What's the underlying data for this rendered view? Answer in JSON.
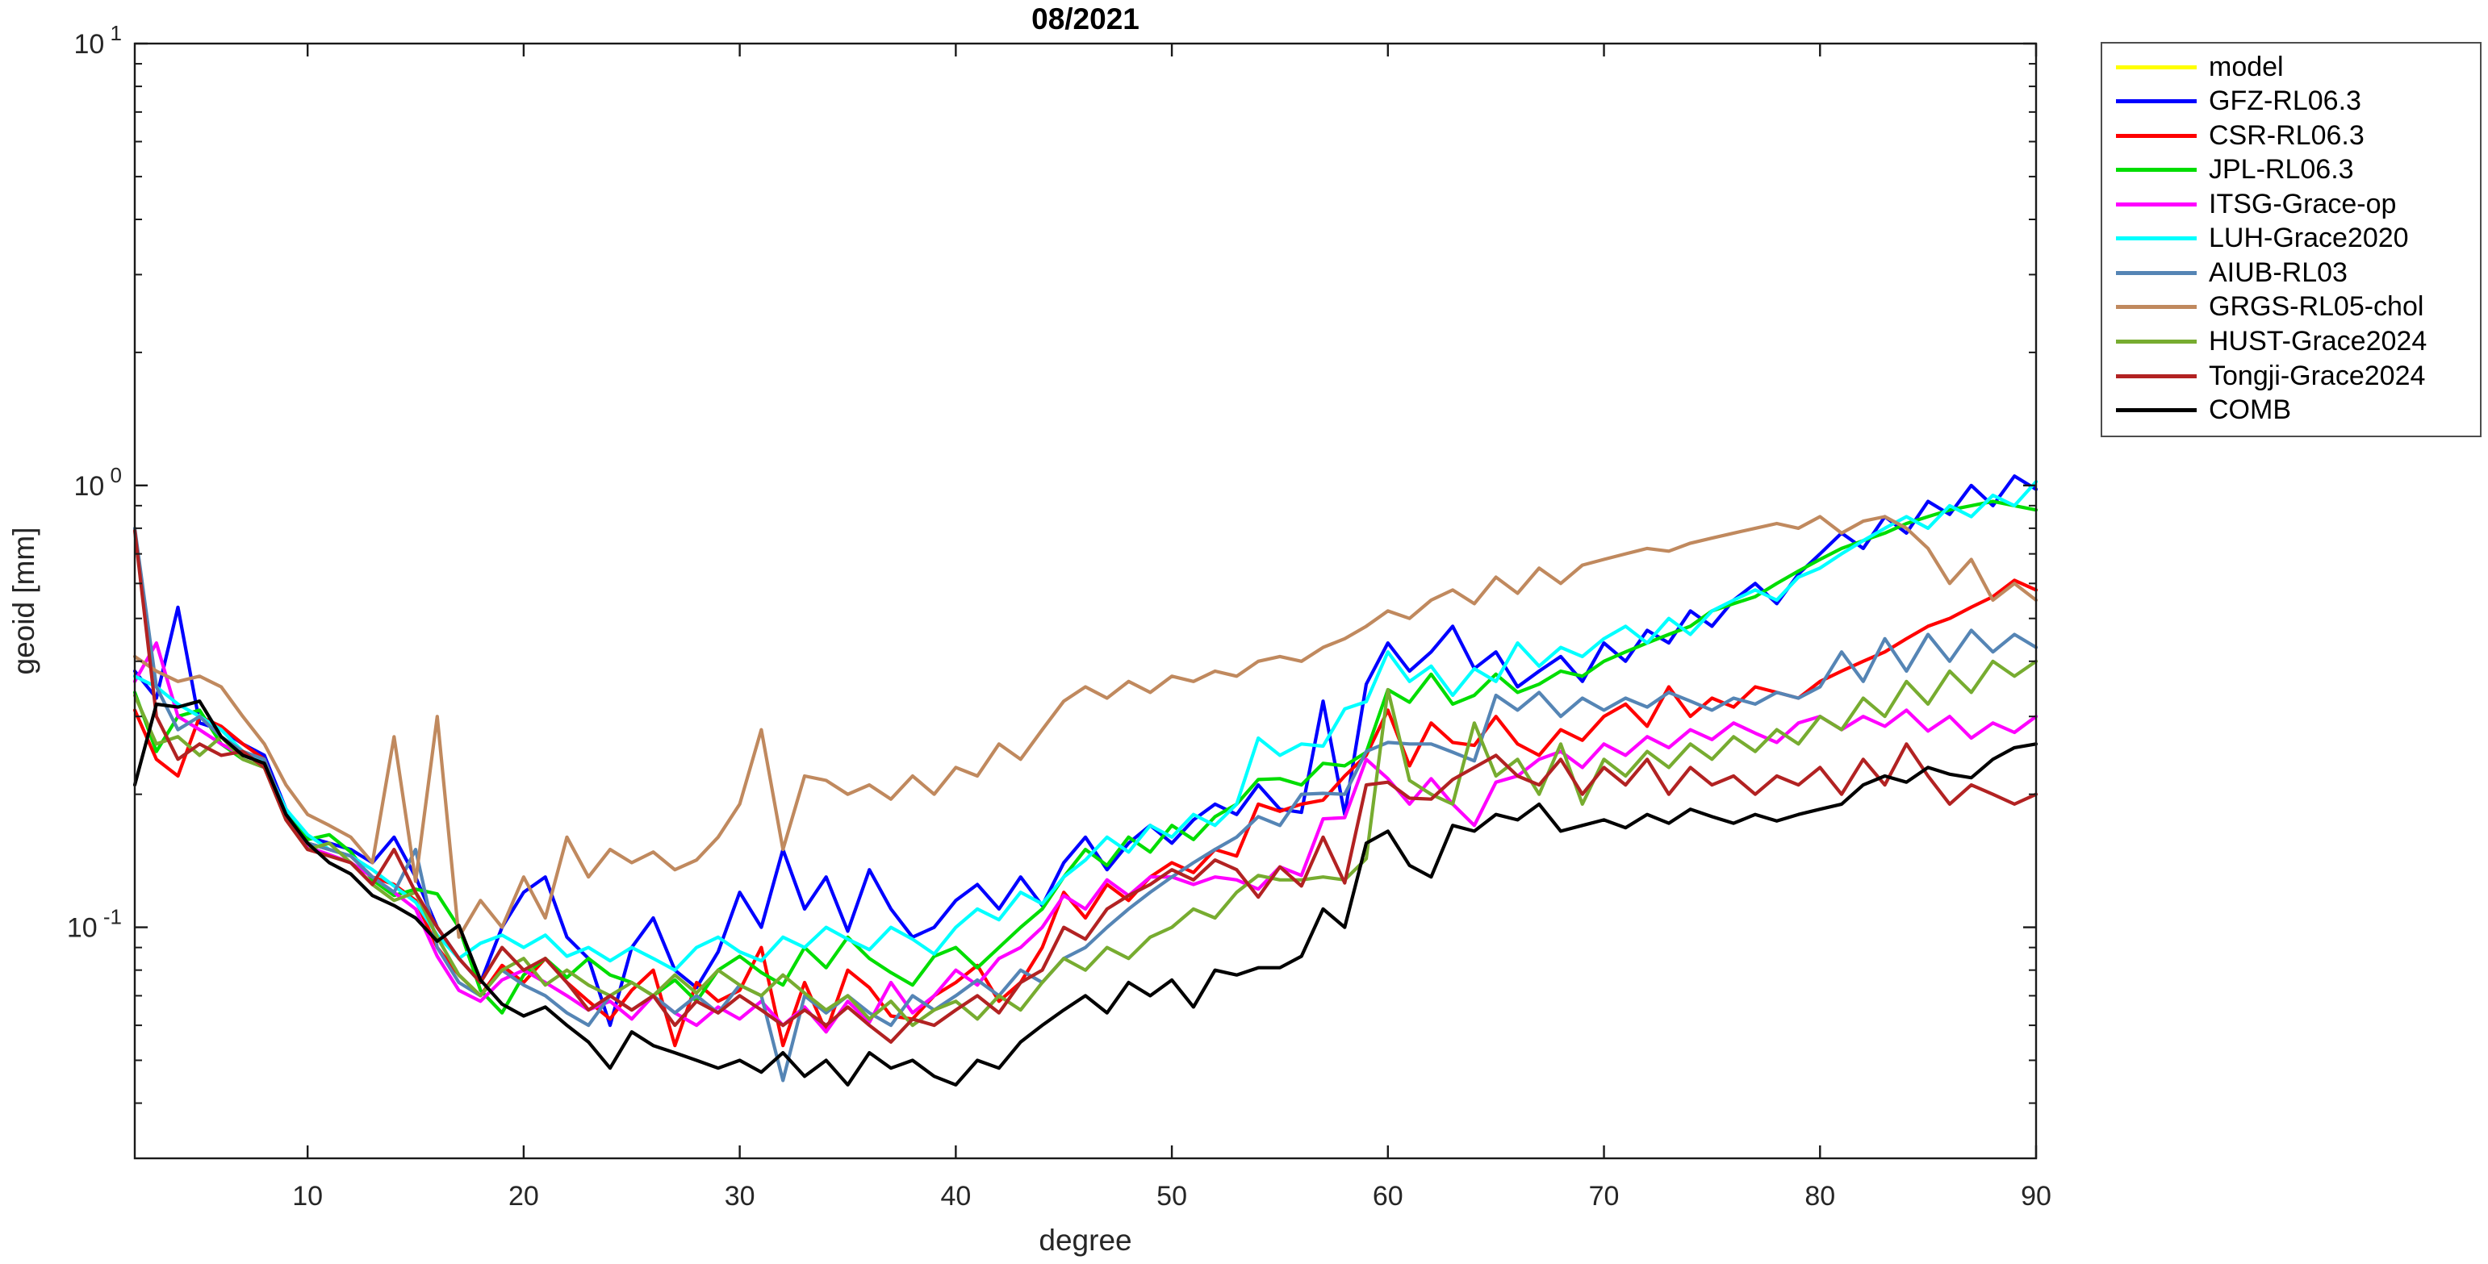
{
  "title": "08/2021",
  "axes": {
    "xlabel": "degree",
    "ylabel": "geoid [mm]"
  },
  "chart_data": {
    "type": "line",
    "title": "08/2021",
    "xlabel": "degree",
    "ylabel": "geoid [mm]",
    "x_axis": "spherical harmonic degree, linear",
    "y_axis": "log10 scale",
    "xlim": [
      2,
      90
    ],
    "ylim": [
      0.03,
      10
    ],
    "xticks": [
      10,
      20,
      30,
      40,
      50,
      60,
      70,
      80,
      90
    ],
    "yticks_major": [
      {
        "value": 10,
        "base": "10",
        "exp": "1"
      },
      {
        "value": 1,
        "base": "10",
        "exp": "0"
      },
      {
        "value": 0.1,
        "base": "10",
        "exp": "-1"
      }
    ],
    "yticks_minor": [
      0.04,
      0.05,
      0.06,
      0.07,
      0.08,
      0.09,
      0.2,
      0.3,
      0.4,
      0.5,
      0.6,
      0.7,
      0.8,
      0.9,
      2,
      3,
      4,
      5,
      6,
      7,
      8,
      9
    ],
    "grid": false,
    "legend_position": "outside-right",
    "x": [
      2,
      3,
      4,
      5,
      6,
      7,
      8,
      9,
      10,
      11,
      12,
      13,
      14,
      15,
      16,
      17,
      18,
      19,
      20,
      21,
      22,
      23,
      24,
      25,
      26,
      27,
      28,
      29,
      30,
      31,
      32,
      33,
      34,
      35,
      36,
      37,
      38,
      39,
      40,
      41,
      42,
      43,
      44,
      45,
      46,
      47,
      48,
      49,
      50,
      51,
      52,
      53,
      54,
      55,
      56,
      57,
      58,
      59,
      60,
      61,
      62,
      63,
      64,
      65,
      66,
      67,
      68,
      69,
      70,
      71,
      72,
      73,
      74,
      75,
      76,
      77,
      78,
      79,
      80,
      81,
      82,
      83,
      84,
      85,
      86,
      87,
      88,
      89,
      90
    ],
    "series": [
      {
        "name": "model",
        "color": "#FFFF00",
        "values": []
      },
      {
        "name": "GFZ-RL06.3",
        "color": "#0000FF",
        "values": [
          0.38,
          0.33,
          0.53,
          0.29,
          0.28,
          0.26,
          0.245,
          0.185,
          0.16,
          0.155,
          0.15,
          0.14,
          0.16,
          0.13,
          0.1,
          0.085,
          0.075,
          0.1,
          0.12,
          0.13,
          0.095,
          0.085,
          0.06,
          0.09,
          0.105,
          0.08,
          0.073,
          0.088,
          0.12,
          0.1,
          0.15,
          0.11,
          0.13,
          0.098,
          0.135,
          0.11,
          0.095,
          0.1,
          0.115,
          0.125,
          0.11,
          0.13,
          0.112,
          0.14,
          0.16,
          0.135,
          0.155,
          0.17,
          0.155,
          0.175,
          0.19,
          0.18,
          0.21,
          0.185,
          0.182,
          0.325,
          0.18,
          0.355,
          0.44,
          0.38,
          0.42,
          0.48,
          0.385,
          0.42,
          0.35,
          0.38,
          0.41,
          0.36,
          0.44,
          0.4,
          0.47,
          0.44,
          0.52,
          0.48,
          0.55,
          0.6,
          0.54,
          0.63,
          0.7,
          0.78,
          0.72,
          0.85,
          0.78,
          0.92,
          0.86,
          1.0,
          0.9,
          1.05,
          0.98
        ]
      },
      {
        "name": "CSR-RL06.3",
        "color": "#FF0000",
        "values": [
          0.31,
          0.24,
          0.22,
          0.3,
          0.285,
          0.26,
          0.24,
          0.18,
          0.155,
          0.15,
          0.145,
          0.13,
          0.125,
          0.115,
          0.09,
          0.078,
          0.07,
          0.082,
          0.075,
          0.085,
          0.075,
          0.068,
          0.062,
          0.072,
          0.08,
          0.054,
          0.075,
          0.068,
          0.072,
          0.09,
          0.054,
          0.075,
          0.058,
          0.08,
          0.073,
          0.063,
          0.062,
          0.07,
          0.075,
          0.082,
          0.068,
          0.075,
          0.09,
          0.12,
          0.105,
          0.125,
          0.115,
          0.13,
          0.14,
          0.133,
          0.15,
          0.145,
          0.19,
          0.183,
          0.19,
          0.194,
          0.22,
          0.245,
          0.31,
          0.232,
          0.29,
          0.262,
          0.258,
          0.3,
          0.26,
          0.245,
          0.28,
          0.265,
          0.3,
          0.32,
          0.285,
          0.35,
          0.3,
          0.33,
          0.315,
          0.35,
          0.34,
          0.33,
          0.36,
          0.38,
          0.4,
          0.42,
          0.45,
          0.48,
          0.5,
          0.53,
          0.56,
          0.61,
          0.58
        ]
      },
      {
        "name": "JPL-RL06.3",
        "color": "#00DD00",
        "values": [
          0.34,
          0.25,
          0.3,
          0.31,
          0.26,
          0.24,
          0.23,
          0.18,
          0.158,
          0.162,
          0.148,
          0.128,
          0.118,
          0.122,
          0.119,
          0.1,
          0.072,
          0.064,
          0.078,
          0.085,
          0.077,
          0.085,
          0.078,
          0.075,
          0.07,
          0.076,
          0.068,
          0.08,
          0.086,
          0.079,
          0.074,
          0.09,
          0.081,
          0.095,
          0.085,
          0.079,
          0.074,
          0.086,
          0.09,
          0.081,
          0.09,
          0.1,
          0.11,
          0.13,
          0.15,
          0.138,
          0.16,
          0.148,
          0.17,
          0.158,
          0.178,
          0.19,
          0.216,
          0.217,
          0.21,
          0.235,
          0.232,
          0.249,
          0.345,
          0.323,
          0.374,
          0.32,
          0.335,
          0.374,
          0.34,
          0.355,
          0.38,
          0.37,
          0.4,
          0.42,
          0.44,
          0.46,
          0.48,
          0.52,
          0.54,
          0.56,
          0.6,
          0.64,
          0.68,
          0.72,
          0.75,
          0.78,
          0.82,
          0.85,
          0.88,
          0.9,
          0.92,
          0.9,
          0.88
        ]
      },
      {
        "name": "ITSG-Grace-op",
        "color": "#FF00FF",
        "values": [
          0.36,
          0.44,
          0.3,
          0.28,
          0.26,
          0.245,
          0.235,
          0.18,
          0.152,
          0.146,
          0.14,
          0.13,
          0.12,
          0.11,
          0.086,
          0.072,
          0.068,
          0.076,
          0.08,
          0.075,
          0.07,
          0.065,
          0.068,
          0.062,
          0.07,
          0.064,
          0.06,
          0.066,
          0.062,
          0.068,
          0.06,
          0.066,
          0.058,
          0.068,
          0.061,
          0.075,
          0.064,
          0.07,
          0.08,
          0.074,
          0.085,
          0.09,
          0.1,
          0.118,
          0.11,
          0.128,
          0.118,
          0.13,
          0.13,
          0.125,
          0.13,
          0.128,
          0.122,
          0.137,
          0.131,
          0.176,
          0.177,
          0.24,
          0.217,
          0.19,
          0.217,
          0.19,
          0.17,
          0.213,
          0.22,
          0.24,
          0.25,
          0.23,
          0.26,
          0.245,
          0.27,
          0.255,
          0.28,
          0.266,
          0.29,
          0.275,
          0.262,
          0.29,
          0.3,
          0.28,
          0.3,
          0.285,
          0.31,
          0.278,
          0.3,
          0.268,
          0.29,
          0.276,
          0.3
        ]
      },
      {
        "name": "LUH-Grace2020",
        "color": "#00FFFF",
        "values": [
          0.37,
          0.35,
          0.32,
          0.3,
          0.28,
          0.25,
          0.235,
          0.185,
          0.162,
          0.15,
          0.145,
          0.135,
          0.124,
          0.114,
          0.096,
          0.085,
          0.092,
          0.096,
          0.09,
          0.096,
          0.086,
          0.09,
          0.084,
          0.09,
          0.085,
          0.08,
          0.09,
          0.095,
          0.088,
          0.084,
          0.095,
          0.09,
          0.1,
          0.094,
          0.089,
          0.1,
          0.094,
          0.087,
          0.1,
          0.11,
          0.104,
          0.12,
          0.113,
          0.13,
          0.142,
          0.16,
          0.148,
          0.17,
          0.16,
          0.18,
          0.17,
          0.19,
          0.268,
          0.245,
          0.26,
          0.257,
          0.312,
          0.324,
          0.42,
          0.36,
          0.39,
          0.335,
          0.385,
          0.36,
          0.44,
          0.39,
          0.43,
          0.41,
          0.45,
          0.48,
          0.44,
          0.5,
          0.46,
          0.52,
          0.55,
          0.58,
          0.55,
          0.62,
          0.65,
          0.7,
          0.75,
          0.8,
          0.85,
          0.8,
          0.9,
          0.85,
          0.95,
          0.9,
          1.02
        ]
      },
      {
        "name": "AIUB-RL03",
        "color": "#5585B5",
        "values": [
          0.8,
          0.35,
          0.28,
          0.3,
          0.27,
          0.25,
          0.24,
          0.18,
          0.155,
          0.15,
          0.145,
          0.13,
          0.12,
          0.15,
          0.09,
          0.075,
          0.07,
          0.08,
          0.074,
          0.07,
          0.064,
          0.06,
          0.07,
          0.065,
          0.07,
          0.064,
          0.07,
          0.064,
          0.074,
          0.07,
          0.045,
          0.07,
          0.064,
          0.07,
          0.064,
          0.06,
          0.07,
          0.065,
          0.07,
          0.076,
          0.07,
          0.08,
          0.075,
          0.085,
          0.09,
          0.1,
          0.11,
          0.12,
          0.13,
          0.14,
          0.15,
          0.16,
          0.178,
          0.17,
          0.2,
          0.201,
          0.2,
          0.25,
          0.262,
          0.26,
          0.26,
          0.249,
          0.238,
          0.335,
          0.31,
          0.34,
          0.3,
          0.33,
          0.31,
          0.33,
          0.315,
          0.34,
          0.325,
          0.31,
          0.33,
          0.32,
          0.34,
          0.33,
          0.35,
          0.42,
          0.36,
          0.45,
          0.38,
          0.46,
          0.4,
          0.47,
          0.42,
          0.46,
          0.43
        ]
      },
      {
        "name": "GRGS-RL05-chol",
        "color": "#C0895E",
        "values": [
          0.41,
          0.38,
          0.36,
          0.37,
          0.35,
          0.3,
          0.26,
          0.21,
          0.18,
          0.17,
          0.16,
          0.14,
          0.27,
          0.127,
          0.3,
          0.095,
          0.115,
          0.1,
          0.13,
          0.105,
          0.16,
          0.13,
          0.15,
          0.14,
          0.148,
          0.135,
          0.142,
          0.16,
          0.19,
          0.28,
          0.15,
          0.22,
          0.215,
          0.2,
          0.21,
          0.195,
          0.22,
          0.2,
          0.23,
          0.22,
          0.26,
          0.24,
          0.28,
          0.325,
          0.35,
          0.33,
          0.36,
          0.34,
          0.37,
          0.36,
          0.38,
          0.37,
          0.4,
          0.41,
          0.4,
          0.43,
          0.45,
          0.48,
          0.52,
          0.5,
          0.55,
          0.58,
          0.54,
          0.62,
          0.57,
          0.65,
          0.6,
          0.66,
          0.68,
          0.7,
          0.72,
          0.71,
          0.74,
          0.76,
          0.78,
          0.8,
          0.82,
          0.8,
          0.85,
          0.78,
          0.83,
          0.85,
          0.8,
          0.72,
          0.6,
          0.68,
          0.55,
          0.6,
          0.55
        ]
      },
      {
        "name": "HUST-Grace2024",
        "color": "#77AC30",
        "values": [
          0.335,
          0.26,
          0.27,
          0.245,
          0.27,
          0.24,
          0.23,
          0.175,
          0.15,
          0.155,
          0.14,
          0.125,
          0.115,
          0.12,
          0.095,
          0.078,
          0.07,
          0.08,
          0.085,
          0.074,
          0.08,
          0.074,
          0.07,
          0.075,
          0.07,
          0.078,
          0.071,
          0.08,
          0.074,
          0.07,
          0.078,
          0.071,
          0.065,
          0.07,
          0.062,
          0.068,
          0.06,
          0.065,
          0.068,
          0.062,
          0.07,
          0.065,
          0.075,
          0.085,
          0.08,
          0.09,
          0.085,
          0.095,
          0.1,
          0.11,
          0.105,
          0.12,
          0.131,
          0.128,
          0.128,
          0.13,
          0.128,
          0.143,
          0.345,
          0.215,
          0.2,
          0.19,
          0.29,
          0.22,
          0.24,
          0.2,
          0.26,
          0.19,
          0.24,
          0.22,
          0.25,
          0.23,
          0.26,
          0.24,
          0.27,
          0.25,
          0.28,
          0.26,
          0.3,
          0.28,
          0.33,
          0.3,
          0.36,
          0.32,
          0.38,
          0.34,
          0.4,
          0.37,
          0.4
        ]
      },
      {
        "name": "Tongji-Grace2024",
        "color": "#B22222",
        "values": [
          0.79,
          0.3,
          0.24,
          0.26,
          0.245,
          0.25,
          0.23,
          0.175,
          0.15,
          0.145,
          0.14,
          0.125,
          0.15,
          0.12,
          0.1,
          0.085,
          0.075,
          0.09,
          0.08,
          0.085,
          0.075,
          0.065,
          0.07,
          0.065,
          0.07,
          0.06,
          0.068,
          0.064,
          0.07,
          0.065,
          0.06,
          0.065,
          0.06,
          0.066,
          0.06,
          0.055,
          0.062,
          0.06,
          0.065,
          0.07,
          0.064,
          0.075,
          0.08,
          0.1,
          0.094,
          0.11,
          0.118,
          0.125,
          0.135,
          0.128,
          0.142,
          0.135,
          0.117,
          0.137,
          0.124,
          0.16,
          0.126,
          0.21,
          0.213,
          0.196,
          0.195,
          0.216,
          0.23,
          0.245,
          0.22,
          0.21,
          0.24,
          0.2,
          0.23,
          0.21,
          0.24,
          0.2,
          0.23,
          0.21,
          0.22,
          0.2,
          0.22,
          0.21,
          0.23,
          0.2,
          0.24,
          0.21,
          0.26,
          0.22,
          0.19,
          0.21,
          0.2,
          0.19,
          0.2
        ]
      },
      {
        "name": "COMB",
        "color": "#000000",
        "values": [
          0.21,
          0.32,
          0.315,
          0.325,
          0.27,
          0.245,
          0.235,
          0.18,
          0.155,
          0.14,
          0.132,
          0.118,
          0.112,
          0.105,
          0.093,
          0.101,
          0.076,
          0.067,
          0.063,
          0.066,
          0.06,
          0.055,
          0.048,
          0.058,
          0.054,
          0.052,
          0.05,
          0.048,
          0.05,
          0.047,
          0.052,
          0.046,
          0.05,
          0.044,
          0.052,
          0.048,
          0.05,
          0.046,
          0.044,
          0.05,
          0.048,
          0.055,
          0.06,
          0.065,
          0.07,
          0.064,
          0.075,
          0.07,
          0.076,
          0.066,
          0.08,
          0.078,
          0.081,
          0.081,
          0.086,
          0.11,
          0.1,
          0.155,
          0.165,
          0.138,
          0.13,
          0.17,
          0.165,
          0.18,
          0.175,
          0.19,
          0.165,
          0.17,
          0.175,
          0.168,
          0.18,
          0.172,
          0.185,
          0.178,
          0.172,
          0.18,
          0.174,
          0.18,
          0.185,
          0.19,
          0.21,
          0.22,
          0.213,
          0.23,
          0.222,
          0.218,
          0.24,
          0.255,
          0.26
        ]
      }
    ]
  }
}
